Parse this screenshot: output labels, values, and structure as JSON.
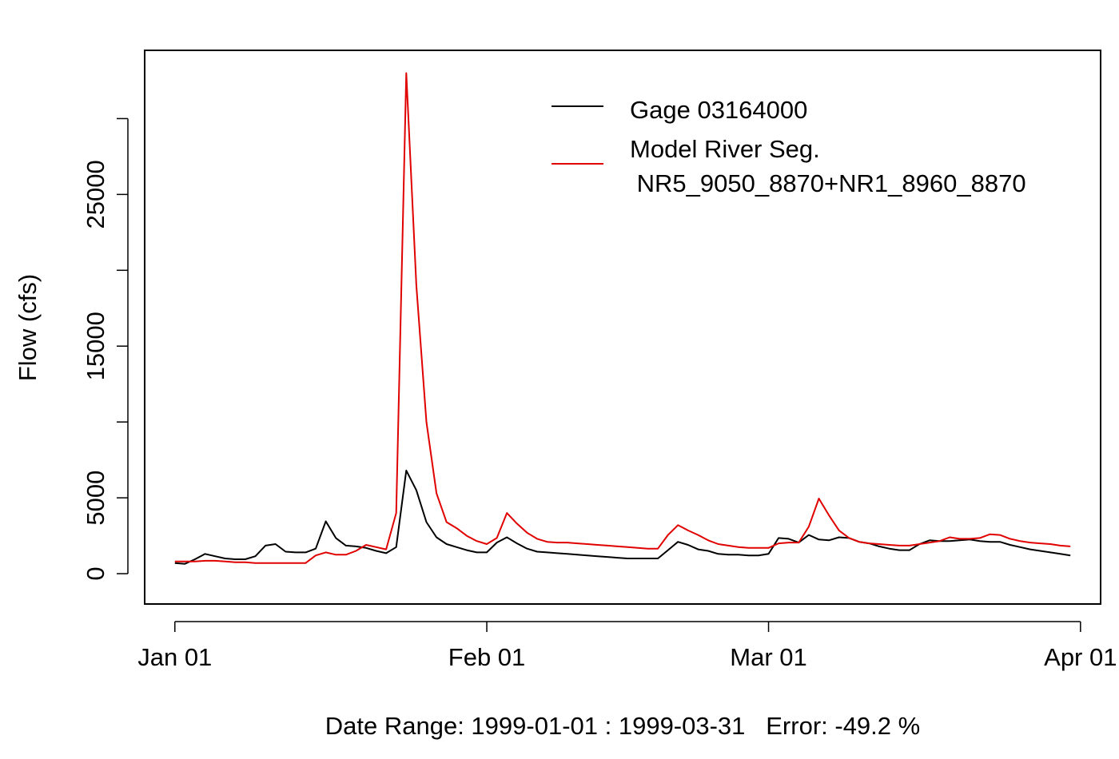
{
  "chart_data": {
    "type": "line",
    "ylabel": "Flow (cfs)",
    "xlabel": "Date Range: 1999-01-01 : 1999-03-31   Error: -49.2 %",
    "ylim": [
      -2000,
      34500
    ],
    "xlim": [
      "1998-12-29",
      "1999-04-03"
    ],
    "y_ticks": [
      0,
      5000,
      10000,
      15000,
      20000,
      25000,
      30000
    ],
    "y_tick_labels": [
      "0",
      "5000",
      "",
      "15000",
      "",
      "25000",
      ""
    ],
    "x_ticks": [
      "1999-01-01",
      "1999-02-01",
      "1999-03-01",
      "1999-04-01"
    ],
    "x_tick_labels": [
      "Jan 01",
      "Feb 01",
      "Mar 01",
      "Apr 01"
    ],
    "grid": false,
    "legend_position": "top-right",
    "x": [
      "1999-01-01",
      "1999-01-02",
      "1999-01-03",
      "1999-01-04",
      "1999-01-05",
      "1999-01-06",
      "1999-01-07",
      "1999-01-08",
      "1999-01-09",
      "1999-01-10",
      "1999-01-11",
      "1999-01-12",
      "1999-01-13",
      "1999-01-14",
      "1999-01-15",
      "1999-01-16",
      "1999-01-17",
      "1999-01-18",
      "1999-01-19",
      "1999-01-20",
      "1999-01-21",
      "1999-01-22",
      "1999-01-23",
      "1999-01-24",
      "1999-01-25",
      "1999-01-26",
      "1999-01-27",
      "1999-01-28",
      "1999-01-29",
      "1999-01-30",
      "1999-01-31",
      "1999-02-01",
      "1999-02-02",
      "1999-02-03",
      "1999-02-04",
      "1999-02-05",
      "1999-02-06",
      "1999-02-07",
      "1999-02-08",
      "1999-02-09",
      "1999-02-10",
      "1999-02-11",
      "1999-02-12",
      "1999-02-13",
      "1999-02-14",
      "1999-02-15",
      "1999-02-16",
      "1999-02-17",
      "1999-02-18",
      "1999-02-19",
      "1999-02-20",
      "1999-02-21",
      "1999-02-22",
      "1999-02-23",
      "1999-02-24",
      "1999-02-25",
      "1999-02-26",
      "1999-02-27",
      "1999-02-28",
      "1999-03-01",
      "1999-03-02",
      "1999-03-03",
      "1999-03-04",
      "1999-03-05",
      "1999-03-06",
      "1999-03-07",
      "1999-03-08",
      "1999-03-09",
      "1999-03-10",
      "1999-03-11",
      "1999-03-12",
      "1999-03-13",
      "1999-03-14",
      "1999-03-15",
      "1999-03-16",
      "1999-03-17",
      "1999-03-18",
      "1999-03-19",
      "1999-03-20",
      "1999-03-21",
      "1999-03-22",
      "1999-03-23",
      "1999-03-24",
      "1999-03-25",
      "1999-03-26",
      "1999-03-27",
      "1999-03-28",
      "1999-03-29",
      "1999-03-30",
      "1999-03-31"
    ],
    "series": [
      {
        "name": "Gage 03164000",
        "color": "#000000",
        "values": [
          700,
          650,
          950,
          1300,
          1150,
          1000,
          950,
          950,
          1150,
          1850,
          1950,
          1450,
          1400,
          1400,
          1650,
          3450,
          2350,
          1850,
          1800,
          1700,
          1500,
          1350,
          1750,
          6800,
          5500,
          3400,
          2400,
          1950,
          1750,
          1550,
          1400,
          1400,
          2050,
          2400,
          2000,
          1650,
          1450,
          1400,
          1350,
          1300,
          1250,
          1200,
          1150,
          1100,
          1050,
          1000,
          1000,
          1000,
          1000,
          1550,
          2100,
          1900,
          1600,
          1500,
          1300,
          1250,
          1250,
          1200,
          1200,
          1300,
          2350,
          2300,
          2050,
          2550,
          2250,
          2200,
          2400,
          2350,
          2100,
          2000,
          1800,
          1650,
          1550,
          1550,
          1950,
          2200,
          2150,
          2150,
          2200,
          2250,
          2150,
          2100,
          2100,
          1900,
          1750,
          1600,
          1500,
          1400,
          1300,
          1200
        ]
      },
      {
        "name": "Model River Seg.\n NR5_9050_8870+NR1_8960_8870",
        "color": "#e00000",
        "values": [
          800,
          800,
          800,
          850,
          850,
          800,
          750,
          750,
          700,
          700,
          700,
          700,
          700,
          700,
          1200,
          1400,
          1250,
          1250,
          1500,
          1900,
          1750,
          1600,
          4000,
          33000,
          19000,
          10000,
          5300,
          3400,
          3000,
          2500,
          2150,
          1950,
          2350,
          4000,
          3300,
          2700,
          2300,
          2100,
          2050,
          2050,
          2000,
          1950,
          1900,
          1850,
          1800,
          1750,
          1700,
          1650,
          1650,
          2550,
          3200,
          2850,
          2550,
          2200,
          1950,
          1850,
          1750,
          1700,
          1700,
          1700,
          2000,
          2050,
          2050,
          3100,
          4950,
          3850,
          2850,
          2350,
          2100,
          2000,
          1950,
          1900,
          1850,
          1850,
          1950,
          2050,
          2150,
          2400,
          2300,
          2300,
          2350,
          2600,
          2550,
          2300,
          2150,
          2050,
          2000,
          1950,
          1850,
          1800
        ]
      }
    ],
    "legend_labels": [
      "Gage 03164000",
      "Model River Seg.",
      " NR5_9050_8870+NR1_8960_8870"
    ]
  }
}
